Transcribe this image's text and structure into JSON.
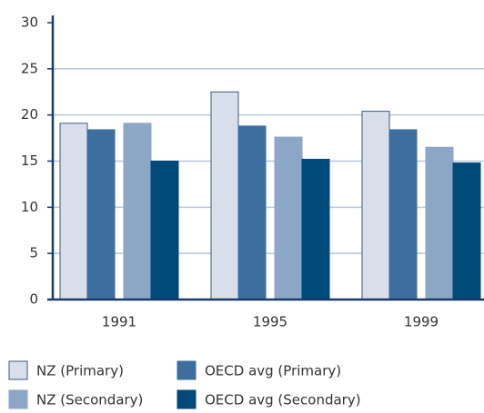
{
  "chart_data": {
    "type": "bar",
    "categories": [
      "1991",
      "1995",
      "1999"
    ],
    "series": [
      {
        "name": "NZ (Primary)",
        "color": "#d9dfea",
        "values": [
          19.1,
          22.5,
          20.4
        ]
      },
      {
        "name": "OECD avg (Primary)",
        "color": "#3d6e9e",
        "values": [
          18.4,
          18.8,
          18.4
        ]
      },
      {
        "name": "NZ (Secondary)",
        "color": "#8ca6c5",
        "values": [
          19.1,
          17.6,
          16.5
        ]
      },
      {
        "name": "OECD avg (Secondary)",
        "color": "#004a7a",
        "values": [
          15.0,
          15.2,
          14.8
        ]
      }
    ],
    "ylim": [
      0,
      30
    ],
    "yticks": [
      0,
      5,
      10,
      15,
      20,
      25,
      30
    ],
    "grid": true,
    "legend": "bottom"
  }
}
